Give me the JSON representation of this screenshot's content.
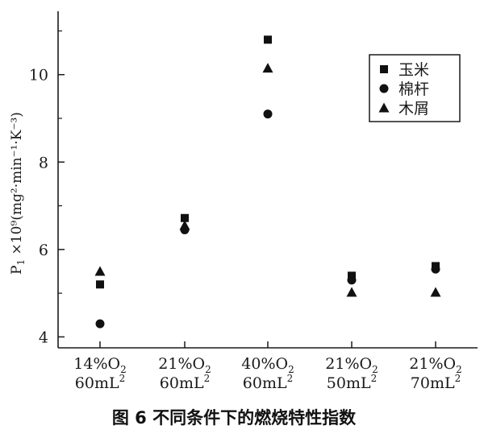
{
  "chart_data": {
    "type": "scatter",
    "caption": "图 6   不同条件下的燃烧特性指数",
    "ylabel": "P",
    "ylabel_sub": "1",
    "ylabel_rest": " ×10⁹(mg²·min⁻¹·K⁻³)",
    "ylim": [
      3.75,
      11.45
    ],
    "yticks": [
      4,
      6,
      8,
      10
    ],
    "categories": [
      {
        "line1": "14%O",
        "sub": "2",
        "line2": "60mL",
        "sup": "2"
      },
      {
        "line1": "21%O",
        "sub": "2",
        "line2": "60mL",
        "sup": "2"
      },
      {
        "line1": "40%O",
        "sub": "2",
        "line2": "60mL",
        "sup": "2"
      },
      {
        "line1": "21%O",
        "sub": "2",
        "line2": "50mL",
        "sup": "2"
      },
      {
        "line1": "21%O",
        "sub": "2",
        "line2": "70mL",
        "sup": "2"
      }
    ],
    "series": [
      {
        "name": "玉米",
        "marker": "square",
        "values": [
          5.2,
          6.72,
          10.8,
          5.4,
          5.62
        ]
      },
      {
        "name": "棉杆",
        "marker": "circle",
        "values": [
          4.3,
          6.45,
          9.1,
          5.3,
          5.55
        ]
      },
      {
        "name": "木屑",
        "marker": "triangle",
        "values": [
          5.5,
          6.55,
          10.15,
          5.02,
          5.02
        ]
      }
    ],
    "legend_position": "top-right",
    "marker_color": "#111111"
  }
}
